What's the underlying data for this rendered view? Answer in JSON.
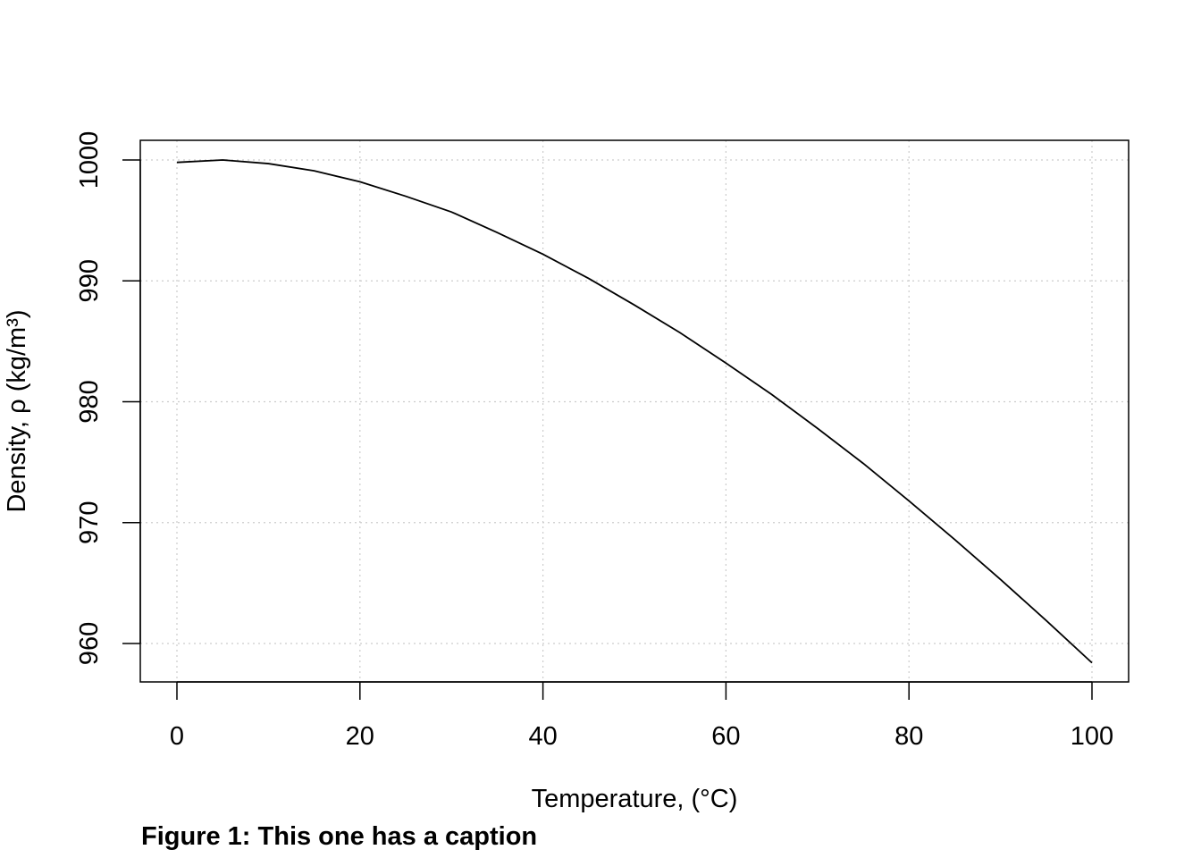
{
  "chart_data": {
    "type": "line",
    "xlabel": "Temperature, (°C)",
    "ylabel": "Density, ρ (kg/m³)",
    "xlim": [
      0,
      100
    ],
    "ylim": [
      960,
      1000
    ],
    "x_ticks": [
      "0",
      "20",
      "40",
      "60",
      "80",
      "100"
    ],
    "y_ticks": [
      "960",
      "970",
      "980",
      "990",
      "1000"
    ],
    "grid": true,
    "line_color": "#000000",
    "grid_color": "#cccccc",
    "series": [
      {
        "x": [
          0,
          5,
          10,
          15,
          20,
          25,
          30,
          35,
          40,
          45,
          50,
          55,
          60,
          65,
          70,
          75,
          80,
          85,
          90,
          95,
          100
        ],
        "values": [
          999.8,
          1000.0,
          999.7,
          999.1,
          998.2,
          997.0,
          995.7,
          994.0,
          992.2,
          990.2,
          988.0,
          985.7,
          983.2,
          980.6,
          977.8,
          974.9,
          971.8,
          968.6,
          965.3,
          961.9,
          958.4
        ]
      }
    ]
  },
  "caption": "Figure 1: This one has a caption"
}
